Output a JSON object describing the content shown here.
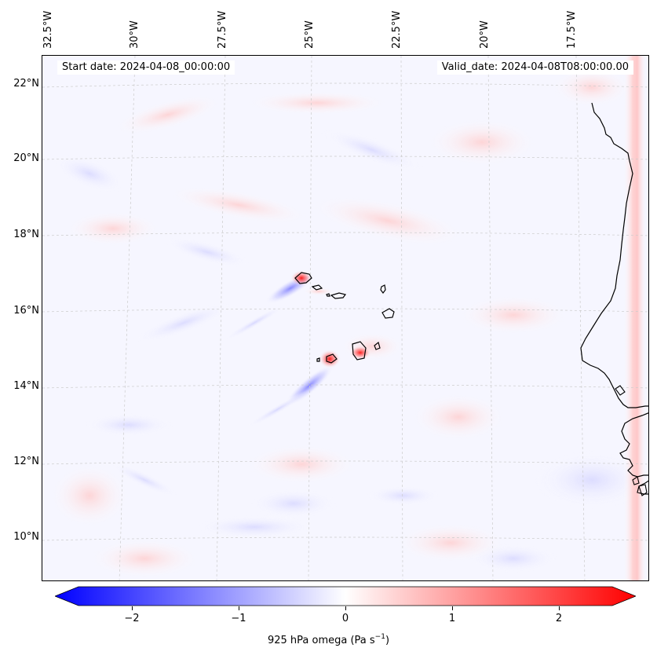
{
  "figure": {
    "start_date": "Start date: 2024-04-08_00:00:00",
    "valid_date": "Valid_date: 2024-04-08T08:00:00.00",
    "colorbar_label": "925 hPa omega (Pa s",
    "colorbar_label_sup": "−1",
    "colorbar_label_end": ")"
  },
  "axes": {
    "longitude_labels": [
      "32.5°W",
      "30°W",
      "27.5°W",
      "25°W",
      "22.5°W",
      "20°W",
      "17.5°W"
    ],
    "latitude_labels": [
      "22°N",
      "20°N",
      "18°N",
      "16°N",
      "14°N",
      "12°N",
      "10°N"
    ]
  },
  "colorbar": {
    "min": -2.5,
    "max": 2.5,
    "ticks": [
      "−2",
      "−1",
      "0",
      "1",
      "2"
    ],
    "tick_values": [
      -2,
      -1,
      0,
      1,
      2
    ],
    "colors": {
      "negative": "#0000ff",
      "neutral": "#ffffff",
      "positive": "#ff0000"
    }
  }
}
